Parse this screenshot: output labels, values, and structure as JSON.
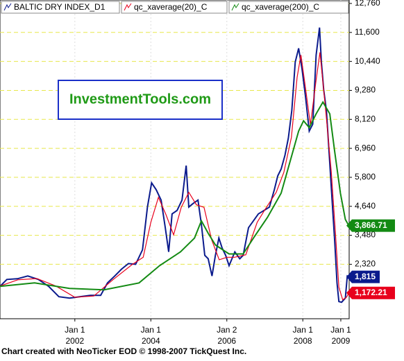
{
  "chart_data": {
    "type": "line",
    "watermark": "InvestmentTools.com",
    "footer": "Chart created with NeoTicker EOD © 1998-2007 TickQuest Inc.",
    "xlim": [
      2000.03,
      2009.22
    ],
    "ylim": [
      140,
      12898
    ],
    "xticks": [
      {
        "value": 2002.0,
        "label": [
          "Jan 1",
          "2002"
        ]
      },
      {
        "value": 2004.0,
        "label": [
          "Jan 1",
          "2004"
        ]
      },
      {
        "value": 2006.0,
        "label": [
          "Jan 2",
          "2006"
        ]
      },
      {
        "value": 2008.0,
        "label": [
          "Jan 1",
          "2008"
        ]
      },
      {
        "value": 2009.0,
        "label": [
          "Jan 1",
          "2009"
        ]
      }
    ],
    "yticks": [
      {
        "value": 12760,
        "label": "12,760"
      },
      {
        "value": 11600,
        "label": "11,600"
      },
      {
        "value": 10440,
        "label": "10,440"
      },
      {
        "value": 9280,
        "label": "9,280"
      },
      {
        "value": 8120,
        "label": "8,120"
      },
      {
        "value": 6960,
        "label": "6,960"
      },
      {
        "value": 5800,
        "label": "5,800"
      },
      {
        "value": 4640,
        "label": "4,640"
      },
      {
        "value": 3480,
        "label": "3,480"
      },
      {
        "value": 2320,
        "label": "2,320"
      }
    ],
    "grid": true,
    "series": [
      {
        "name": "BALTIC DRY INDEX_D1",
        "color": "#0a1a8c",
        "last_value_label": "1,815",
        "x": [
          2000.03,
          2000.21,
          2000.49,
          2000.76,
          2001.04,
          2001.31,
          2001.58,
          2001.86,
          2002.13,
          2002.41,
          2002.68,
          2002.86,
          2003.05,
          2003.23,
          2003.41,
          2003.6,
          2003.78,
          2003.91,
          2004.02,
          2004.14,
          2004.27,
          2004.38,
          2004.47,
          2004.56,
          2004.69,
          2004.82,
          2004.93,
          2005.0,
          2005.11,
          2005.24,
          2005.33,
          2005.42,
          2005.51,
          2005.61,
          2005.7,
          2005.79,
          2005.88,
          2005.97,
          2006.06,
          2006.21,
          2006.34,
          2006.43,
          2006.57,
          2006.7,
          2006.83,
          2006.98,
          2007.12,
          2007.25,
          2007.34,
          2007.43,
          2007.53,
          2007.62,
          2007.71,
          2007.8,
          2007.89,
          2007.98,
          2008.07,
          2008.17,
          2008.26,
          2008.35,
          2008.44,
          2008.49,
          2008.55,
          2008.62,
          2008.68,
          2008.77,
          2008.84,
          2008.9,
          2008.95,
          2009.02,
          2009.12,
          2009.17,
          2009.21
        ],
        "values": [
          1436,
          1712,
          1740,
          1850,
          1712,
          1436,
          1021,
          966,
          1021,
          1077,
          1077,
          1574,
          1850,
          2126,
          2347,
          2320,
          2900,
          4612,
          5579,
          5303,
          4888,
          3783,
          2817,
          4336,
          4474,
          4888,
          6269,
          4612,
          4750,
          4888,
          3921,
          2679,
          2541,
          1850,
          2679,
          3369,
          2955,
          2679,
          2265,
          2817,
          2541,
          2679,
          3783,
          4060,
          4336,
          4474,
          4612,
          5303,
          5855,
          6131,
          6684,
          7374,
          8479,
          10412,
          10964,
          10136,
          9031,
          7650,
          7926,
          10689,
          11793,
          10412,
          9307,
          8479,
          7098,
          4888,
          3231,
          1574,
          828,
          800,
          966,
          1850,
          1815
        ]
      },
      {
        "name": "qc_xaverage(20)_C",
        "color": "#e8001c",
        "last_value_label": "1,172.21",
        "x": [
          2000.03,
          2000.5,
          2001.0,
          2001.5,
          2002.0,
          2002.5,
          2003.0,
          2003.5,
          2003.8,
          2004.0,
          2004.2,
          2004.4,
          2004.6,
          2004.8,
          2005.0,
          2005.2,
          2005.4,
          2005.6,
          2005.8,
          2006.0,
          2006.2,
          2006.5,
          2006.8,
          2007.0,
          2007.3,
          2007.5,
          2007.7,
          2007.85,
          2007.95,
          2008.05,
          2008.2,
          2008.35,
          2008.45,
          2008.55,
          2008.65,
          2008.75,
          2008.85,
          2008.95,
          2009.05,
          2009.15,
          2009.21
        ],
        "values": [
          1450,
          1700,
          1750,
          1450,
          1000,
          1050,
          1700,
          2300,
          2600,
          4000,
          5000,
          4300,
          3500,
          4600,
          5200,
          4700,
          4600,
          3300,
          2500,
          2600,
          2600,
          2700,
          4000,
          4500,
          5200,
          6000,
          7400,
          9800,
          10700,
          9600,
          7900,
          9700,
          10800,
          9300,
          7700,
          6000,
          3800,
          1400,
          900,
          1000,
          1172.21
        ]
      },
      {
        "name": "qc_xaverage(200)_C",
        "color": "#138a13",
        "last_value_label": "3,866.71",
        "x": [
          2000.03,
          2000.94,
          2001.86,
          2002.77,
          2003.69,
          2004.23,
          2004.78,
          2005.15,
          2005.33,
          2005.51,
          2005.7,
          2006.06,
          2006.43,
          2006.7,
          2007.07,
          2007.43,
          2007.71,
          2007.89,
          2008.02,
          2008.17,
          2008.35,
          2008.53,
          2008.71,
          2008.84,
          2008.99,
          2009.12,
          2009.21
        ],
        "values": [
          1436,
          1574,
          1353,
          1298,
          1574,
          2265,
          2817,
          3369,
          4060,
          3563,
          3093,
          2734,
          2734,
          3369,
          4198,
          5165,
          6684,
          7650,
          8065,
          7788,
          8341,
          8810,
          8341,
          6821,
          5165,
          4115,
          3866.71
        ]
      }
    ]
  }
}
